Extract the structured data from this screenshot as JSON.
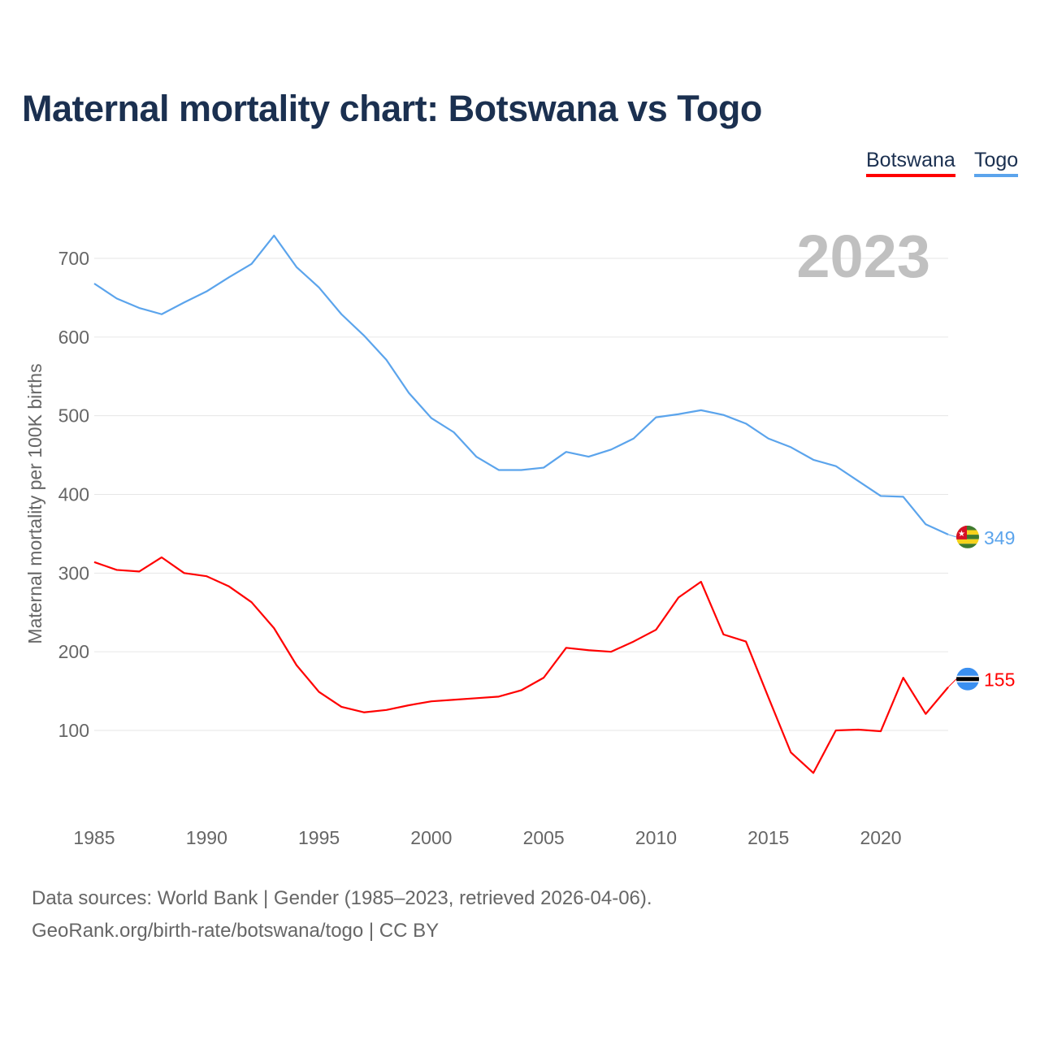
{
  "chart_data": {
    "type": "line",
    "title": "Maternal mortality chart: Botswana vs Togo",
    "xlabel": "",
    "ylabel": "Maternal mortality per 100K births",
    "year_watermark": "2023",
    "xlim": [
      1985,
      2023
    ],
    "ylim": [
      0,
      750
    ],
    "x_ticks": [
      1985,
      1990,
      1995,
      2000,
      2005,
      2010,
      2015,
      2020
    ],
    "y_ticks": [
      100,
      200,
      300,
      400,
      500,
      600,
      700
    ],
    "grid": true,
    "legend_position": "top-right",
    "x": [
      1985,
      1986,
      1987,
      1988,
      1989,
      1990,
      1991,
      1992,
      1993,
      1994,
      1995,
      1996,
      1997,
      1998,
      1999,
      2000,
      2001,
      2002,
      2003,
      2004,
      2005,
      2006,
      2007,
      2008,
      2009,
      2010,
      2011,
      2012,
      2013,
      2014,
      2015,
      2016,
      2017,
      2018,
      2019,
      2020,
      2021,
      2022,
      2023
    ],
    "series": [
      {
        "name": "Botswana",
        "color": "#ff0000",
        "end_label": "155",
        "values": [
          314,
          304,
          302,
          320,
          300,
          296,
          283,
          263,
          230,
          183,
          149,
          130,
          123,
          126,
          132,
          137,
          139,
          141,
          143,
          151,
          167,
          205,
          202,
          200,
          213,
          228,
          269,
          289,
          222,
          213,
          142,
          72,
          46,
          100,
          101,
          99,
          167,
          121,
          155
        ]
      },
      {
        "name": "Togo",
        "color": "#5ba4ec",
        "end_label": "349",
        "values": [
          668,
          649,
          637,
          629,
          644,
          658,
          676,
          693,
          729,
          689,
          663,
          629,
          602,
          571,
          529,
          497,
          479,
          448,
          431,
          431,
          434,
          454,
          448,
          457,
          471,
          498,
          502,
          507,
          501,
          490,
          471,
          460,
          444,
          436,
          417,
          398,
          397,
          362,
          349
        ]
      }
    ]
  },
  "footer": {
    "line1": "Data sources: World Bank | Gender (1985–2023, retrieved 2026-04-06).",
    "line2": "GeoRank.org/birth-rate/botswana/togo | CC BY"
  }
}
